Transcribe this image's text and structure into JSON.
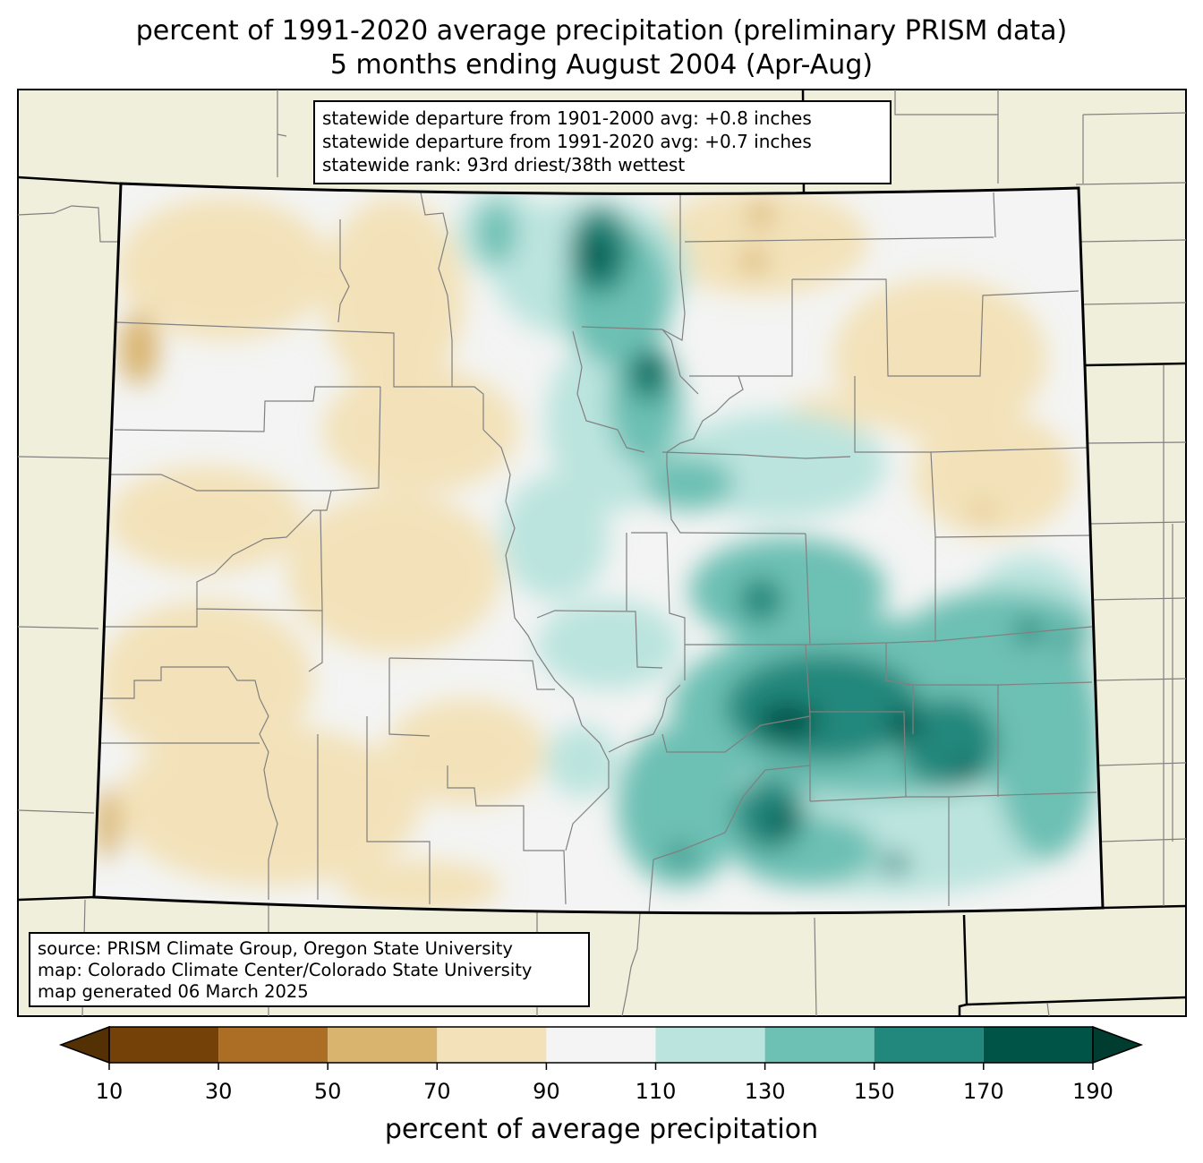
{
  "title": {
    "line1": "percent of 1991-2020 average precipitation (preliminary PRISM data)",
    "line2": "5 months ending August 2004 (Apr-Aug)"
  },
  "stats_box": {
    "lines": [
      "statewide departure from 1901-2000 avg: +0.8 inches",
      "statewide departure from 1991-2020 avg: +0.7 inches",
      "statewide rank: 93rd driest/38th wettest"
    ]
  },
  "source_box": {
    "lines": [
      "source: PRISM Climate Group, Oregon State University",
      "map: Colorado Climate Center/Colorado State University",
      "map generated 06 March 2025"
    ]
  },
  "colorbar": {
    "label": "percent of average precipitation",
    "ticks": [
      "10",
      "30",
      "50",
      "70",
      "90",
      "110",
      "130",
      "150",
      "170",
      "190"
    ],
    "colors": {
      "below_10": "#543005",
      "10_30": "#744108",
      "30_50": "#ab6e24",
      "50_70": "#d9b46e",
      "70_90": "#f3e2b9",
      "90_110": "#f3f4f3",
      "110_130": "#bbe4de",
      "130_150": "#6dc0b4",
      "150_170": "#22877c",
      "170_190": "#005347",
      "above_190": "#003c30"
    }
  },
  "map_colors": {
    "land_outside": "#efefdc",
    "state_border": "#000000",
    "county_lines": "#808080"
  }
}
